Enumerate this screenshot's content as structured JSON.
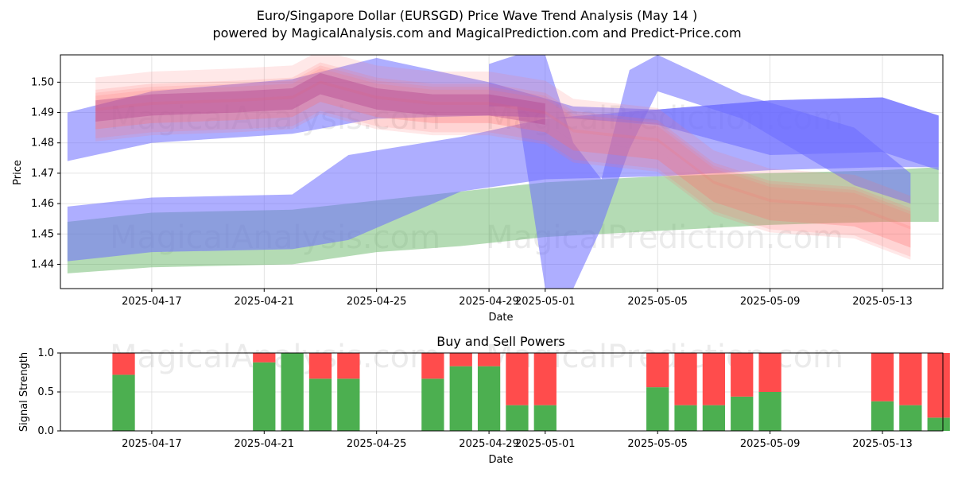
{
  "header": {
    "title_line1": "Euro/Singapore Dollar (EURSGD) Price Wave Trend Analysis (May 14 )",
    "title_line2": "powered by MagicalAnalysis.com and MagicalPrediction.com and Predict-Price.com"
  },
  "watermarks": {
    "left": "MagicalAnalysis.com",
    "right": "MagicalPrediction.com"
  },
  "colors": {
    "blue_band": "#6c6cff",
    "green_band": "#6ab86a",
    "red_band": "#ff6e6e",
    "magenta_band": "#b03a8a",
    "buy": "#4caf50",
    "sell": "#ff4c4c",
    "grid": "#dcdcdc"
  },
  "chart_data": [
    {
      "type": "area",
      "title": "",
      "xlabel": "Date",
      "ylabel": "Price",
      "ylim": [
        1.432,
        1.509
      ],
      "xlim": [
        "2025-04-14",
        "2025-05-15"
      ],
      "x_ticks": [
        "2025-04-17",
        "2025-04-21",
        "2025-04-25",
        "2025-04-29",
        "2025-05-01",
        "2025-05-05",
        "2025-05-09",
        "2025-05-13"
      ],
      "y_ticks": [
        1.44,
        1.45,
        1.46,
        1.47,
        1.48,
        1.49,
        1.5
      ],
      "grid": true,
      "series": [
        {
          "kind": "blue-upper-band",
          "x": [
            "2025-04-14",
            "2025-04-17",
            "2025-04-22",
            "2025-04-25",
            "2025-04-29",
            "2025-05-02",
            "2025-05-05",
            "2025-05-09",
            "2025-05-13",
            "2025-05-15"
          ],
          "upper": [
            1.49,
            1.497,
            1.501,
            1.508,
            1.5,
            1.492,
            1.491,
            1.494,
            1.495,
            1.489
          ],
          "lower": [
            1.474,
            1.48,
            1.483,
            1.488,
            1.489,
            1.488,
            1.486,
            1.476,
            1.477,
            1.471
          ]
        },
        {
          "kind": "blue-lower-band",
          "x": [
            "2025-04-14",
            "2025-04-17",
            "2025-04-22",
            "2025-04-24",
            "2025-04-28",
            "2025-05-01",
            "2025-05-05",
            "2025-05-09",
            "2025-05-13",
            "2025-05-15"
          ],
          "upper": [
            1.459,
            1.462,
            1.463,
            1.476,
            1.482,
            1.488,
            1.491,
            1.494,
            1.495,
            1.489
          ],
          "lower": [
            1.441,
            1.444,
            1.445,
            1.448,
            1.464,
            1.468,
            1.469,
            1.471,
            1.472,
            1.472
          ]
        },
        {
          "kind": "blue-wave",
          "x": [
            "2025-04-29",
            "2025-04-30",
            "2025-05-01",
            "2025-05-02",
            "2025-05-03",
            "2025-05-04",
            "2025-05-05",
            "2025-05-08",
            "2025-05-12",
            "2025-05-14"
          ],
          "upper": [
            1.506,
            1.509,
            1.509,
            1.48,
            1.468,
            1.504,
            1.509,
            1.496,
            1.485,
            1.47
          ],
          "lower": [
            1.492,
            1.492,
            1.432,
            1.432,
            1.452,
            1.478,
            1.497,
            1.488,
            1.466,
            1.46
          ]
        },
        {
          "kind": "green-band",
          "x": [
            "2025-04-14",
            "2025-04-17",
            "2025-04-22",
            "2025-04-25",
            "2025-04-28",
            "2025-05-01",
            "2025-05-05",
            "2025-05-09",
            "2025-05-13",
            "2025-05-15"
          ],
          "upper": [
            1.454,
            1.457,
            1.458,
            1.461,
            1.464,
            1.467,
            1.469,
            1.47,
            1.471,
            1.472
          ],
          "lower": [
            1.437,
            1.439,
            1.44,
            1.444,
            1.446,
            1.449,
            1.451,
            1.453,
            1.454,
            1.454
          ]
        },
        {
          "kind": "red-wave-center",
          "x": [
            "2025-04-15",
            "2025-04-17",
            "2025-04-20",
            "2025-04-22",
            "2025-04-23",
            "2025-04-25",
            "2025-04-27",
            "2025-04-29",
            "2025-05-01",
            "2025-05-02",
            "2025-05-05",
            "2025-05-07",
            "2025-05-09",
            "2025-05-12",
            "2025-05-14"
          ],
          "values": [
            1.49,
            1.492,
            1.493,
            1.494,
            1.499,
            1.494,
            1.492,
            1.492,
            1.489,
            1.483,
            1.48,
            1.466,
            1.46,
            1.458,
            1.451
          ]
        }
      ]
    },
    {
      "type": "bar",
      "title": "Buy and Sell Powers",
      "xlabel": "Date",
      "ylabel": "Signal Strength",
      "ylim": [
        0,
        1.0
      ],
      "y_ticks": [
        0.0,
        0.5,
        1.0
      ],
      "x_ticks": [
        "2025-04-17",
        "2025-04-21",
        "2025-04-25",
        "2025-04-29",
        "2025-05-01",
        "2025-05-05",
        "2025-05-09",
        "2025-05-13"
      ],
      "categories": [
        "2025-04-16",
        "2025-04-21",
        "2025-04-22",
        "2025-04-23",
        "2025-04-24",
        "2025-04-27",
        "2025-04-28",
        "2025-04-29",
        "2025-04-30",
        "2025-05-01",
        "2025-05-05",
        "2025-05-06",
        "2025-05-07",
        "2025-05-08",
        "2025-05-09",
        "2025-05-13",
        "2025-05-14",
        "2025-05-15"
      ],
      "series": [
        {
          "name": "Buy",
          "values": [
            0.72,
            0.88,
            1.0,
            0.67,
            0.67,
            0.67,
            0.83,
            0.83,
            0.33,
            0.33,
            0.56,
            0.33,
            0.33,
            0.44,
            0.5,
            0.38,
            0.33,
            0.17
          ]
        },
        {
          "name": "Sell",
          "values": [
            0.28,
            0.12,
            0.0,
            0.33,
            0.33,
            0.33,
            0.17,
            0.17,
            0.67,
            0.67,
            0.44,
            0.67,
            0.67,
            0.56,
            0.5,
            0.62,
            0.67,
            0.83
          ]
        }
      ]
    }
  ]
}
